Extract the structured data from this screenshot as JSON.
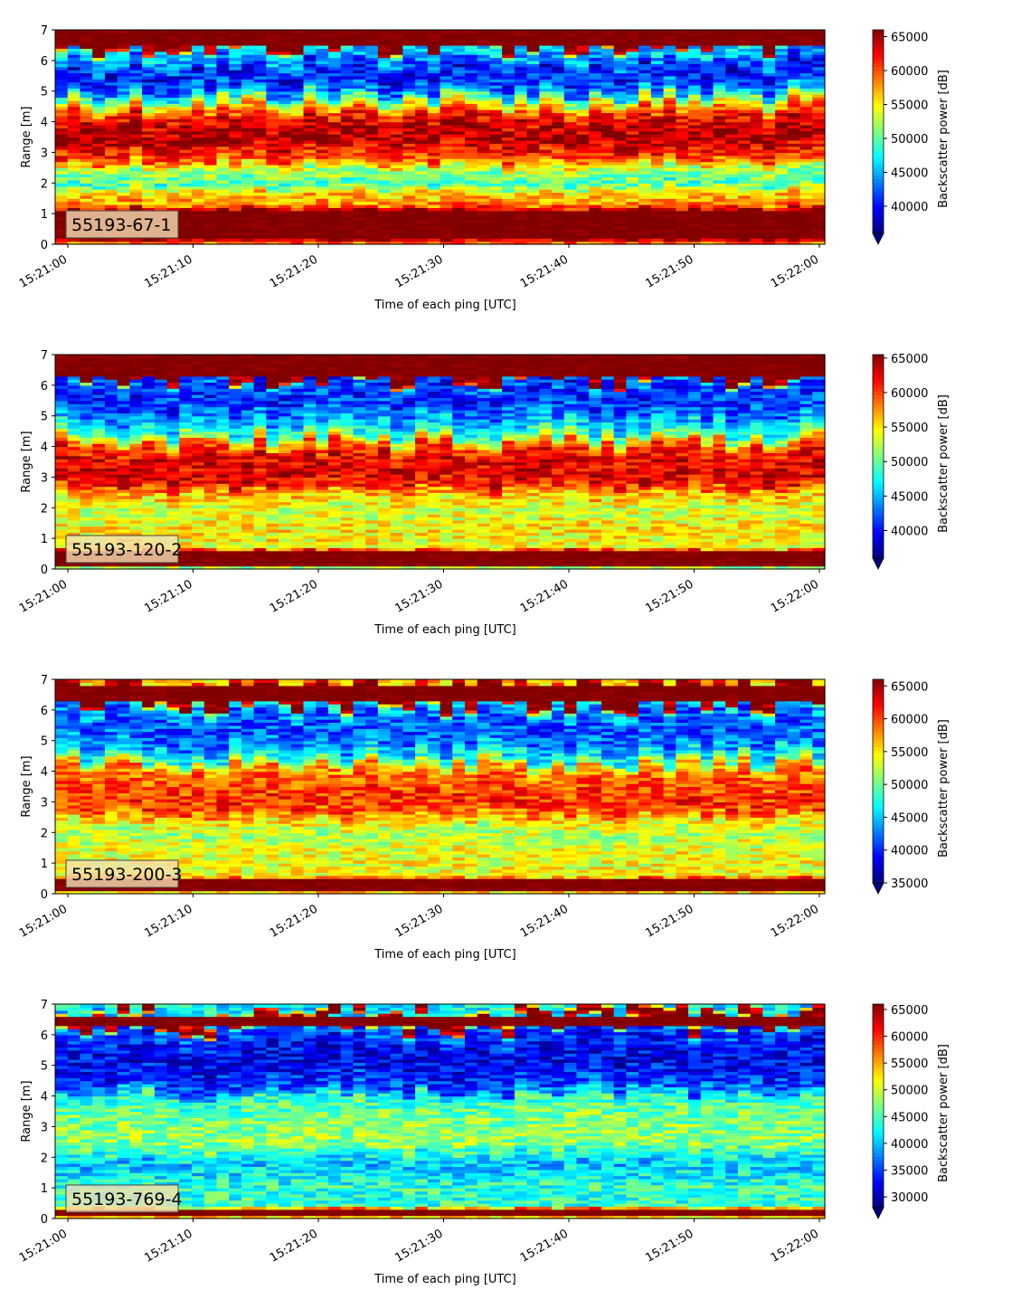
{
  "chart_data": [
    {
      "type": "heatmap",
      "label": "55193-67-1",
      "xlabel": "Time of each ping [UTC]",
      "ylabel": "Range [m]",
      "x_ticks": [
        "15:21:00",
        "15:21:10",
        "15:21:20",
        "15:21:30",
        "15:21:40",
        "15:21:50",
        "15:22:00"
      ],
      "y_ticks": [
        0,
        1,
        2,
        3,
        4,
        5,
        6,
        7
      ],
      "ylim": [
        0,
        7
      ],
      "colorbar": {
        "label": "Backscatter power [dB]",
        "ticks": [
          40000,
          45000,
          50000,
          55000,
          60000,
          65000
        ],
        "range": [
          36000,
          66000
        ],
        "extend": "min"
      },
      "profile": [
        [
          0.0,
          57000
        ],
        [
          0.2,
          66000
        ],
        [
          1.1,
          66000
        ],
        [
          1.3,
          58000
        ],
        [
          1.7,
          56000
        ],
        [
          2.0,
          49000
        ],
        [
          2.5,
          53000
        ],
        [
          2.8,
          60000
        ],
        [
          3.5,
          65000
        ],
        [
          4.2,
          62000
        ],
        [
          4.6,
          55000
        ],
        [
          5.0,
          44000
        ],
        [
          5.6,
          39000
        ],
        [
          6.1,
          45000
        ],
        [
          6.45,
          47000
        ],
        [
          6.55,
          66000
        ],
        [
          7.0,
          66000
        ]
      ]
    },
    {
      "type": "heatmap",
      "label": "55193-120-2",
      "xlabel": "Time of each ping [UTC]",
      "ylabel": "Range [m]",
      "x_ticks": [
        "15:21:00",
        "15:21:10",
        "15:21:20",
        "15:21:30",
        "15:21:40",
        "15:21:50",
        "15:22:00"
      ],
      "y_ticks": [
        0,
        1,
        2,
        3,
        4,
        5,
        6,
        7
      ],
      "ylim": [
        0,
        7
      ],
      "colorbar": {
        "label": "Backscatter power [dB]",
        "ticks": [
          40000,
          45000,
          50000,
          55000,
          60000,
          65000
        ],
        "range": [
          36000,
          65500
        ],
        "extend": "min"
      },
      "profile": [
        [
          0.0,
          45000
        ],
        [
          0.15,
          65500
        ],
        [
          0.55,
          65500
        ],
        [
          0.7,
          54000
        ],
        [
          1.3,
          55000
        ],
        [
          2.0,
          53000
        ],
        [
          2.5,
          57000
        ],
        [
          2.8,
          62000
        ],
        [
          3.5,
          63000
        ],
        [
          4.0,
          60000
        ],
        [
          4.4,
          49000
        ],
        [
          5.0,
          43000
        ],
        [
          5.7,
          40000
        ],
        [
          6.2,
          44000
        ],
        [
          6.3,
          65500
        ],
        [
          7.0,
          65500
        ]
      ]
    },
    {
      "type": "heatmap",
      "label": "55193-200-3",
      "xlabel": "Time of each ping [UTC]",
      "ylabel": "Range [m]",
      "x_ticks": [
        "15:21:00",
        "15:21:10",
        "15:21:20",
        "15:21:30",
        "15:21:40",
        "15:21:50",
        "15:22:00"
      ],
      "y_ticks": [
        0,
        1,
        2,
        3,
        4,
        5,
        6,
        7
      ],
      "ylim": [
        0,
        7
      ],
      "colorbar": {
        "label": "Backscatter power [dB]",
        "ticks": [
          35000,
          40000,
          45000,
          50000,
          55000,
          60000,
          65000
        ],
        "range": [
          35000,
          66000
        ],
        "extend": "min"
      },
      "profile": [
        [
          0.0,
          50000
        ],
        [
          0.15,
          66000
        ],
        [
          0.45,
          66000
        ],
        [
          0.6,
          54000
        ],
        [
          1.3,
          54000
        ],
        [
          2.0,
          52000
        ],
        [
          2.5,
          56000
        ],
        [
          2.8,
          61000
        ],
        [
          3.5,
          60000
        ],
        [
          4.1,
          58000
        ],
        [
          4.4,
          48000
        ],
        [
          5.0,
          42000
        ],
        [
          5.7,
          41000
        ],
        [
          6.2,
          47000
        ],
        [
          6.3,
          66000
        ],
        [
          6.75,
          66000
        ],
        [
          6.85,
          57000
        ],
        [
          7.0,
          55000
        ]
      ]
    },
    {
      "type": "heatmap",
      "label": "55193-769-4",
      "xlabel": "Time of each ping [UTC]",
      "ylabel": "Range [m]",
      "x_ticks": [
        "15:21:00",
        "15:21:10",
        "15:21:20",
        "15:21:30",
        "15:21:40",
        "15:21:50",
        "15:22:00"
      ],
      "y_ticks": [
        0,
        1,
        2,
        3,
        4,
        5,
        6,
        7
      ],
      "ylim": [
        0,
        7
      ],
      "colorbar": {
        "label": "Backscatter power [dB]",
        "ticks": [
          30000,
          35000,
          40000,
          45000,
          50000,
          55000,
          60000,
          65000
        ],
        "range": [
          28000,
          66000
        ],
        "extend": "min"
      },
      "profile": [
        [
          0.0,
          44000
        ],
        [
          0.12,
          66000
        ],
        [
          0.28,
          66000
        ],
        [
          0.4,
          44000
        ],
        [
          1.0,
          44000
        ],
        [
          1.8,
          40000
        ],
        [
          2.5,
          48000
        ],
        [
          3.2,
          47000
        ],
        [
          3.9,
          44000
        ],
        [
          4.2,
          36000
        ],
        [
          5.0,
          32000
        ],
        [
          5.7,
          33000
        ],
        [
          6.2,
          38000
        ],
        [
          6.3,
          66000
        ],
        [
          6.55,
          66000
        ],
        [
          6.7,
          40000
        ],
        [
          7.0,
          43000
        ]
      ]
    }
  ]
}
